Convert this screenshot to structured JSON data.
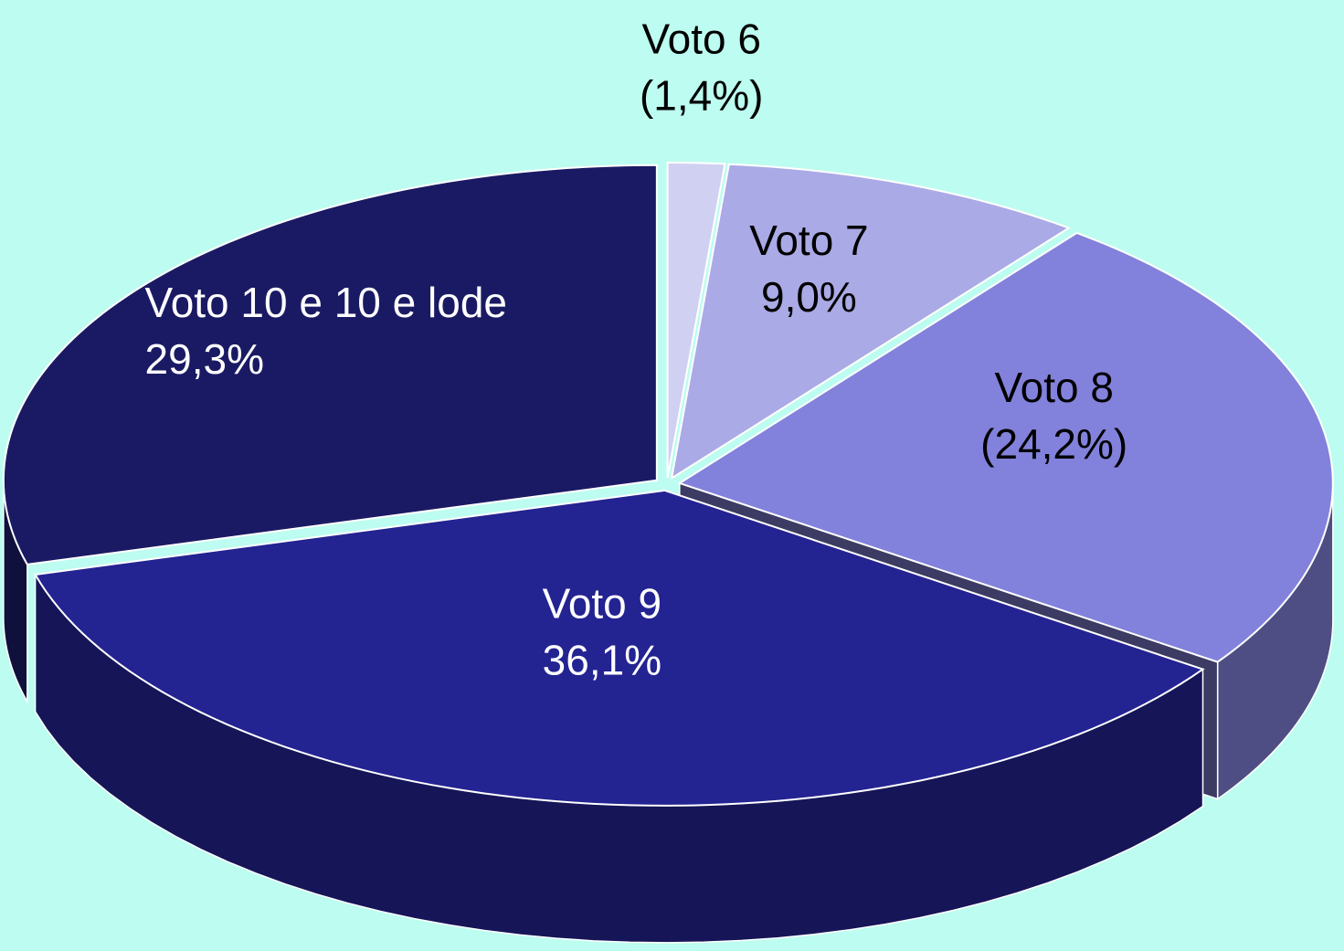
{
  "chart_data": {
    "type": "pie",
    "categories": [
      "Voto 6",
      "Voto 7",
      "Voto 8",
      "Voto 9",
      "Voto 10 e 10 e lode"
    ],
    "values": [
      1.4,
      9.0,
      24.2,
      36.1,
      29.3
    ],
    "value_labels": [
      "(1,4%)",
      "9,0%",
      "(24,2%)",
      "36,1%",
      "29,3%"
    ],
    "colors": [
      "#d0d0f2",
      "#aaaae6",
      "#8282dc",
      "#232392",
      "#1a1a64"
    ]
  }
}
